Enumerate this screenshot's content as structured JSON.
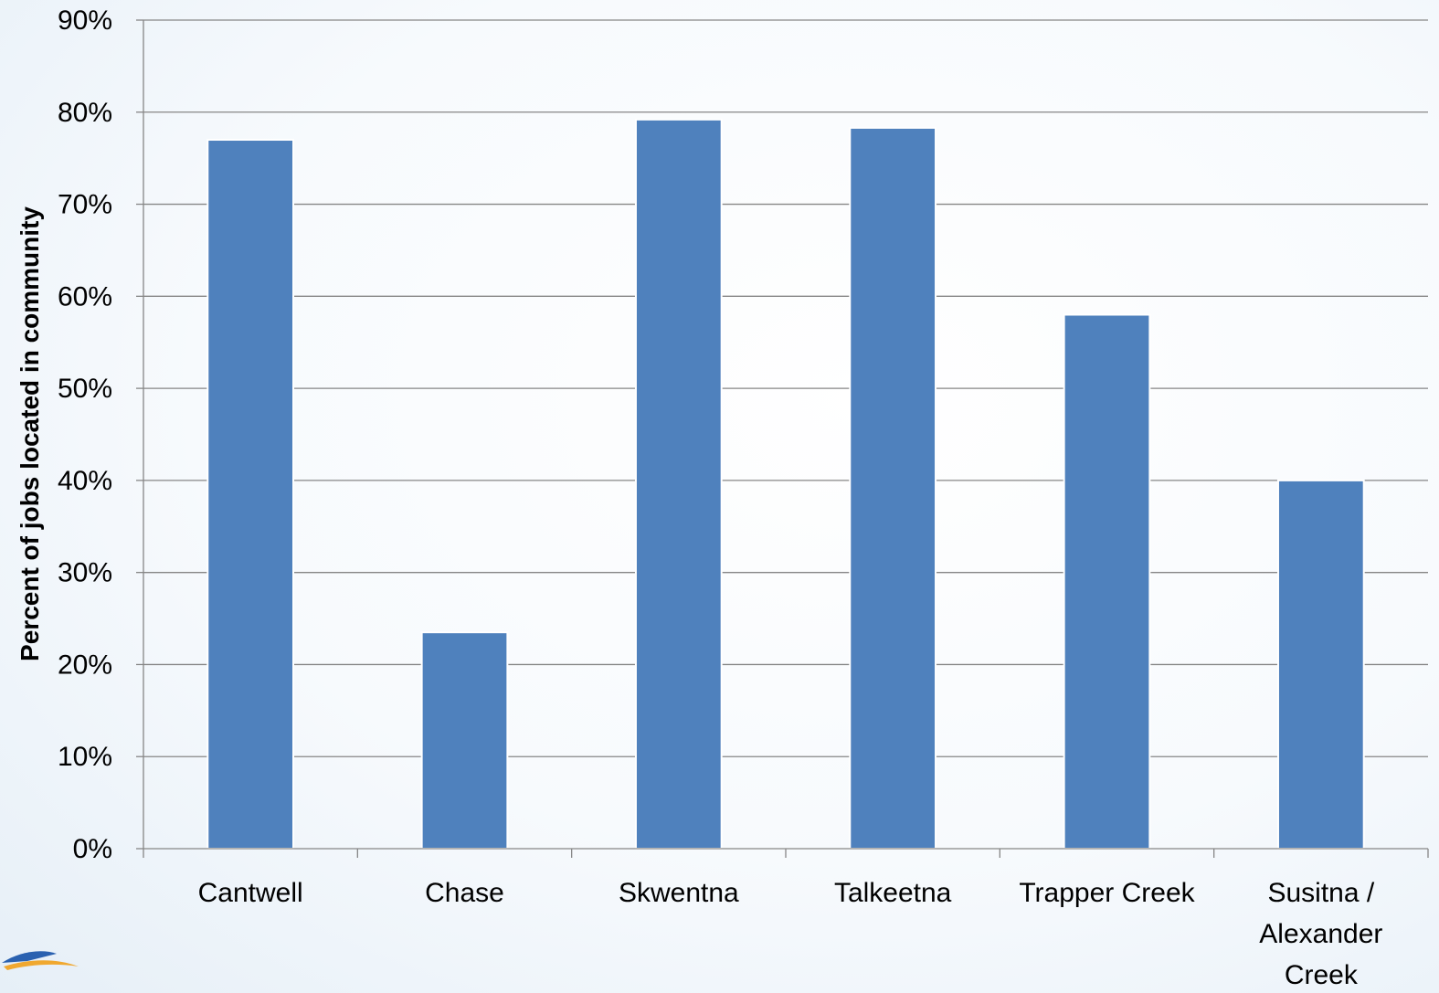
{
  "chart_data": {
    "type": "bar",
    "title": "",
    "xlabel": "",
    "ylabel": "Percent of jobs located in community",
    "categories": [
      "Cantwell",
      "Chase",
      "Skwentna",
      "Talkeetna",
      "Trapper Creek",
      "Susitna / Alexander Creek"
    ],
    "category_lines": [
      [
        "Cantwell"
      ],
      [
        "Chase"
      ],
      [
        "Skwentna"
      ],
      [
        "Talkeetna"
      ],
      [
        "Trapper Creek"
      ],
      [
        "Susitna /",
        "Alexander",
        "Creek"
      ]
    ],
    "values": [
      77,
      23.5,
      79.2,
      78.3,
      58,
      40
    ],
    "ylim": [
      0,
      90
    ],
    "yticks": [
      0,
      10,
      20,
      30,
      40,
      50,
      60,
      70,
      80,
      90
    ],
    "ytick_labels": [
      "0%",
      "10%",
      "20%",
      "30%",
      "40%",
      "50%",
      "60%",
      "70%",
      "80%",
      "90%"
    ],
    "grid": true,
    "legend": "none",
    "bar_color": "#4f81bd"
  },
  "logo_icon": "swoosh-logo-icon"
}
